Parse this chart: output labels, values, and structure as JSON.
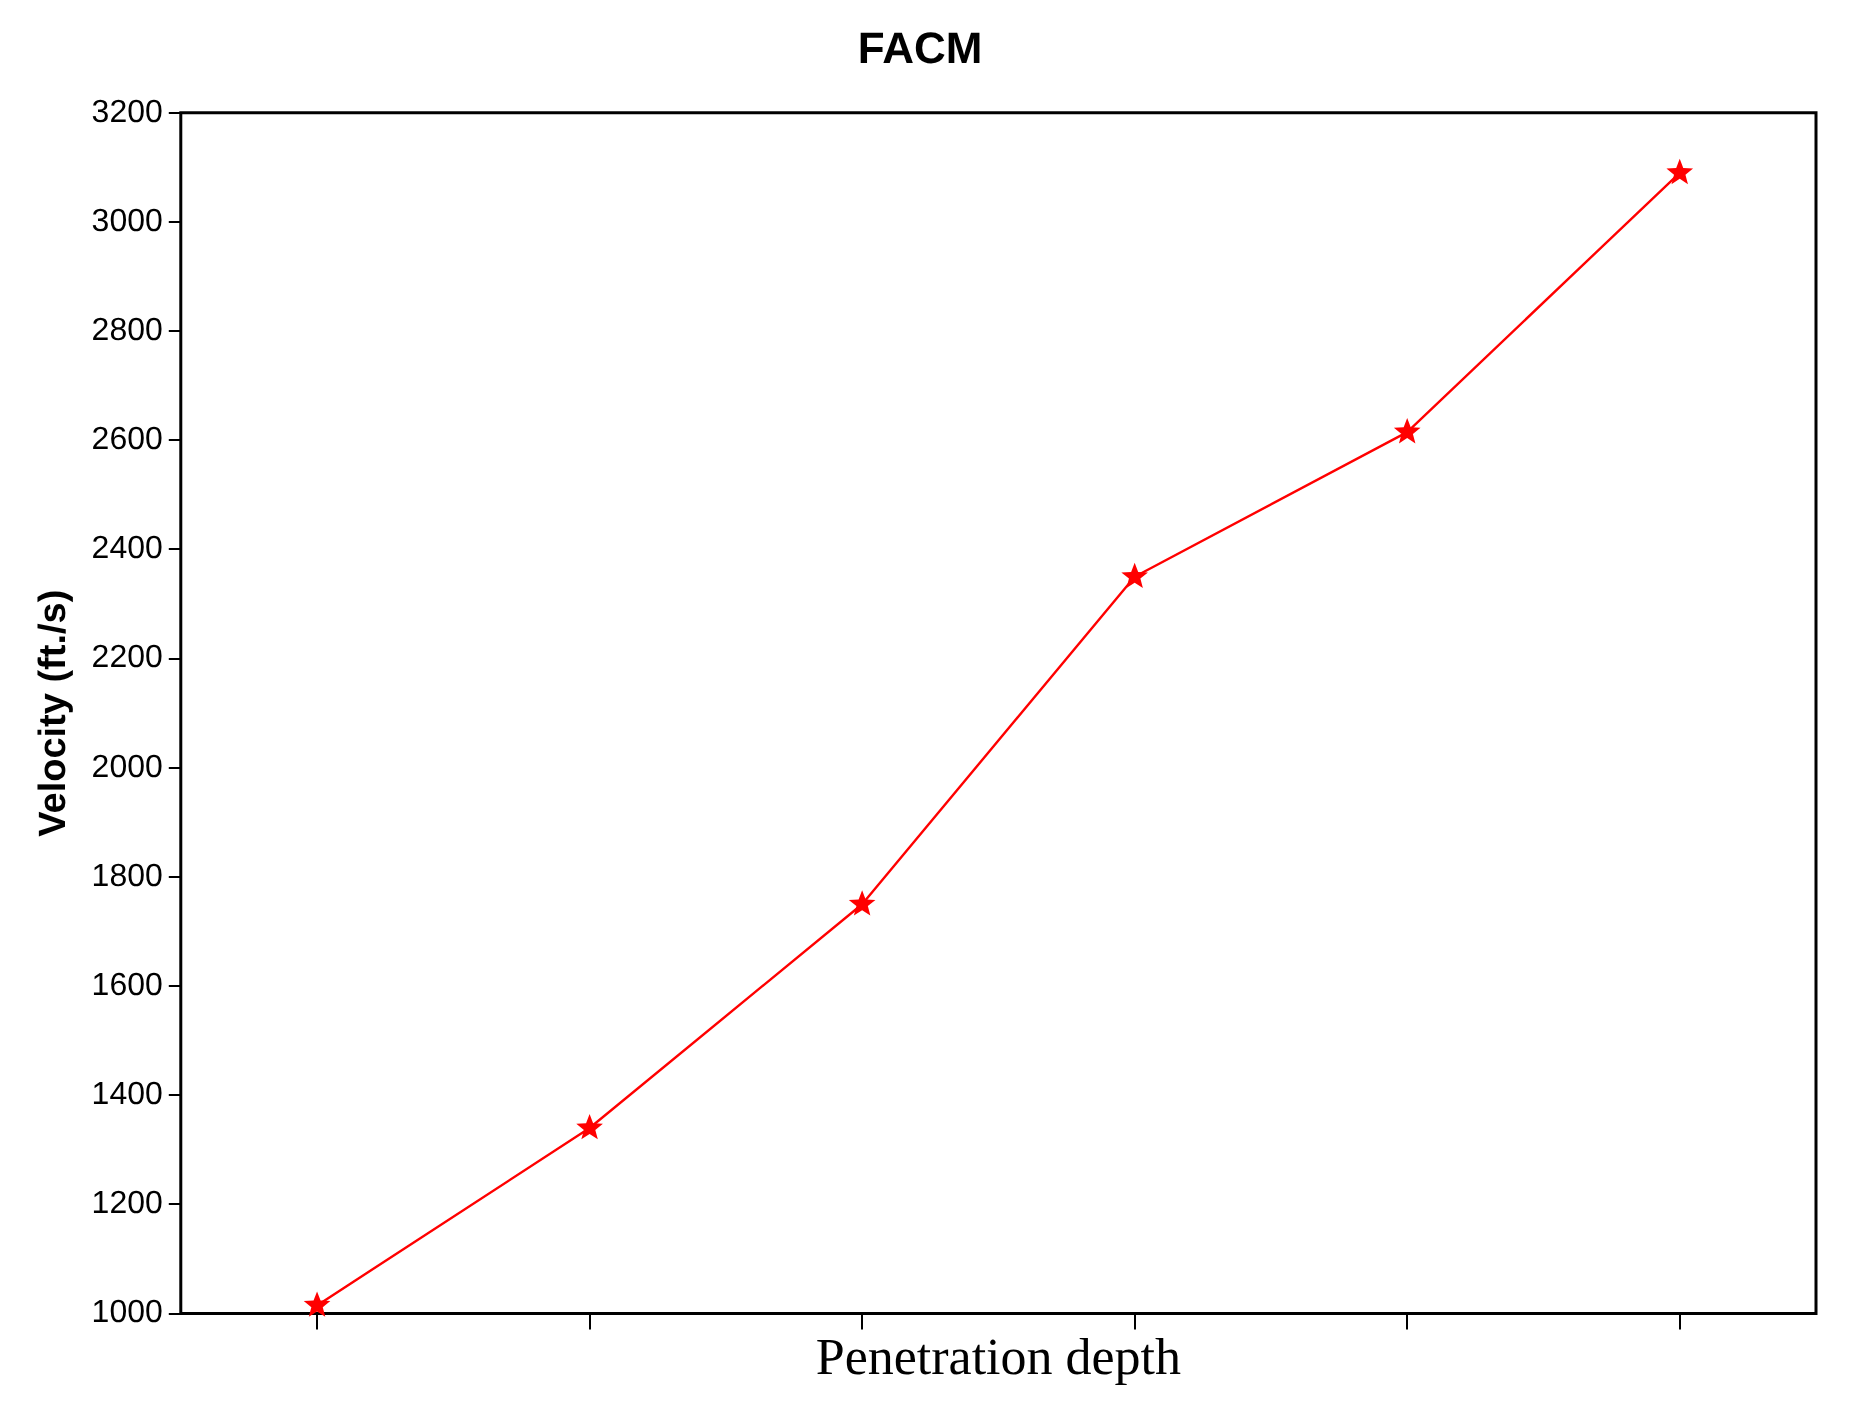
{
  "chart_data": {
    "type": "line",
    "title": "FACM",
    "xlabel": "Penetration depth",
    "ylabel": "Velocity (ft./s)",
    "categories": [
      null,
      null,
      null,
      null,
      null,
      null
    ],
    "series": [
      {
        "color": "#ff0000",
        "values": [
          1015,
          1340,
          1750,
          2350,
          2615,
          3090
        ]
      }
    ],
    "ylim": [
      1000,
      3200
    ],
    "yticks": [
      1000,
      1200,
      1400,
      1600,
      1800,
      2000,
      2200,
      2400,
      2600,
      2800,
      3000,
      3200
    ],
    "marker": "star",
    "line_style": "solid",
    "legend": false,
    "grid": false,
    "tick_labels": "y"
  }
}
